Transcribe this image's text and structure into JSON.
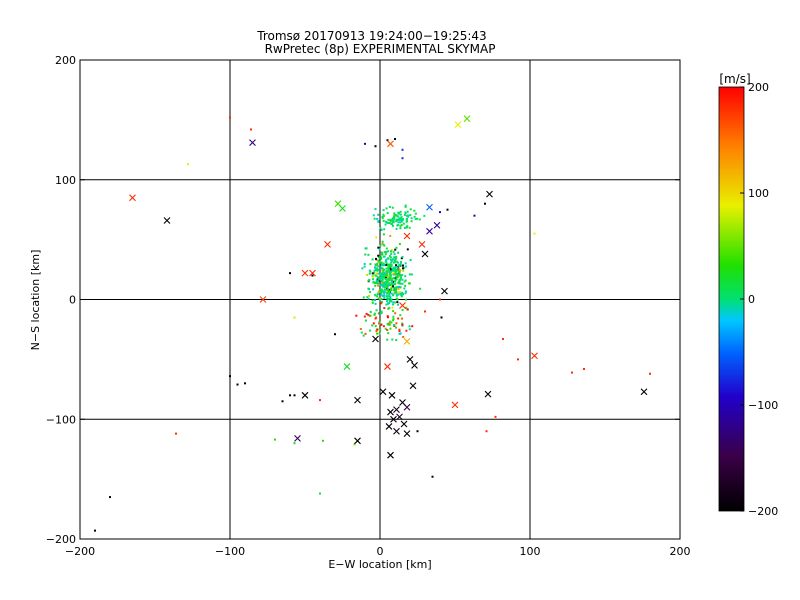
{
  "chart_data": {
    "type": "scatter",
    "title": "Tromsø 20170913 19:24:00−19:25:43",
    "subtitle": "RwPretec (8p) EXPERIMENTAL SKYMAP",
    "xlabel": "E−W location [km]",
    "ylabel": "N−S location [km]",
    "xlim": [
      -200,
      200
    ],
    "ylim": [
      -200,
      200
    ],
    "xticks": [
      -200,
      -100,
      0,
      100,
      200
    ],
    "yticks": [
      -200,
      -100,
      0,
      100,
      200
    ],
    "xtick_labels": [
      "−200",
      "−100",
      "0",
      "100",
      "200"
    ],
    "ytick_labels": [
      "−200",
      "−100",
      "0",
      "100",
      "200"
    ],
    "grid_lines": [
      -100,
      0,
      100
    ],
    "colorbar": {
      "label": "[m/s]",
      "range": [
        -200,
        200
      ],
      "ticks": [
        200,
        100,
        0,
        -100,
        -200
      ],
      "tick_labels": [
        "200",
        "100",
        "0",
        "−100",
        "−200"
      ]
    },
    "series": [
      {
        "name": "meteor velocity (dots)",
        "marker": "dot",
        "cluster_center": [
          0,
          25
        ],
        "cluster_extent": "approx −20..35 km E−W, −35..80 km N−S",
        "dominant_velocity_range": [
          -30,
          40
        ]
      },
      {
        "name": "meteor velocity (crosses)",
        "marker": "x",
        "points": [
          {
            "x": -165,
            "y": 85,
            "v": 180
          },
          {
            "x": -142,
            "y": 66,
            "v": -200
          },
          {
            "x": -85,
            "y": 131,
            "v": -130
          },
          {
            "x": -78,
            "y": 0,
            "v": 170
          },
          {
            "x": -50,
            "y": 22,
            "v": 180
          },
          {
            "x": -45,
            "y": 22,
            "v": 180
          },
          {
            "x": -35,
            "y": 46,
            "v": 180
          },
          {
            "x": -25,
            "y": 76,
            "v": 20
          },
          {
            "x": -28,
            "y": 80,
            "v": 40
          },
          {
            "x": -22,
            "y": -56,
            "v": 20
          },
          {
            "x": -15,
            "y": -84,
            "v": -200
          },
          {
            "x": -55,
            "y": -116,
            "v": -140
          },
          {
            "x": -50,
            "y": -80,
            "v": -200
          },
          {
            "x": -15,
            "y": -118,
            "v": -200
          },
          {
            "x": 7,
            "y": 130,
            "v": 160
          },
          {
            "x": 52,
            "y": 146,
            "v": 90
          },
          {
            "x": 58,
            "y": 151,
            "v": 50
          },
          {
            "x": 73,
            "y": 88,
            "v": -200
          },
          {
            "x": 33,
            "y": 77,
            "v": -60
          },
          {
            "x": 38,
            "y": 62,
            "v": -120
          },
          {
            "x": 33,
            "y": 57,
            "v": -120
          },
          {
            "x": 28,
            "y": 46,
            "v": 180
          },
          {
            "x": 18,
            "y": 53,
            "v": 180
          },
          {
            "x": 30,
            "y": 38,
            "v": -200
          },
          {
            "x": 43,
            "y": 7,
            "v": -200
          },
          {
            "x": 15,
            "y": -5,
            "v": 180
          },
          {
            "x": 18,
            "y": -35,
            "v": 120
          },
          {
            "x": -3,
            "y": -33,
            "v": -200
          },
          {
            "x": 5,
            "y": -56,
            "v": 180
          },
          {
            "x": 20,
            "y": -50,
            "v": -200
          },
          {
            "x": 23,
            "y": -55,
            "v": -200
          },
          {
            "x": 22,
            "y": -72,
            "v": -200
          },
          {
            "x": 2,
            "y": -77,
            "v": -200
          },
          {
            "x": 8,
            "y": -80,
            "v": -200
          },
          {
            "x": 7,
            "y": -94,
            "v": -200
          },
          {
            "x": 11,
            "y": -92,
            "v": -180
          },
          {
            "x": 15,
            "y": -86,
            "v": -200
          },
          {
            "x": 18,
            "y": -90,
            "v": -160
          },
          {
            "x": 9,
            "y": -100,
            "v": -200
          },
          {
            "x": 13,
            "y": -98,
            "v": -170
          },
          {
            "x": 16,
            "y": -104,
            "v": -200
          },
          {
            "x": 6,
            "y": -106,
            "v": -200
          },
          {
            "x": 11,
            "y": -110,
            "v": -190
          },
          {
            "x": 18,
            "y": -112,
            "v": -200
          },
          {
            "x": 7,
            "y": -130,
            "v": -200
          },
          {
            "x": 50,
            "y": -88,
            "v": 180
          },
          {
            "x": 72,
            "y": -79,
            "v": -200
          },
          {
            "x": 103,
            "y": -47,
            "v": 180
          },
          {
            "x": 176,
            "y": -77,
            "v": -200
          }
        ]
      }
    ]
  }
}
